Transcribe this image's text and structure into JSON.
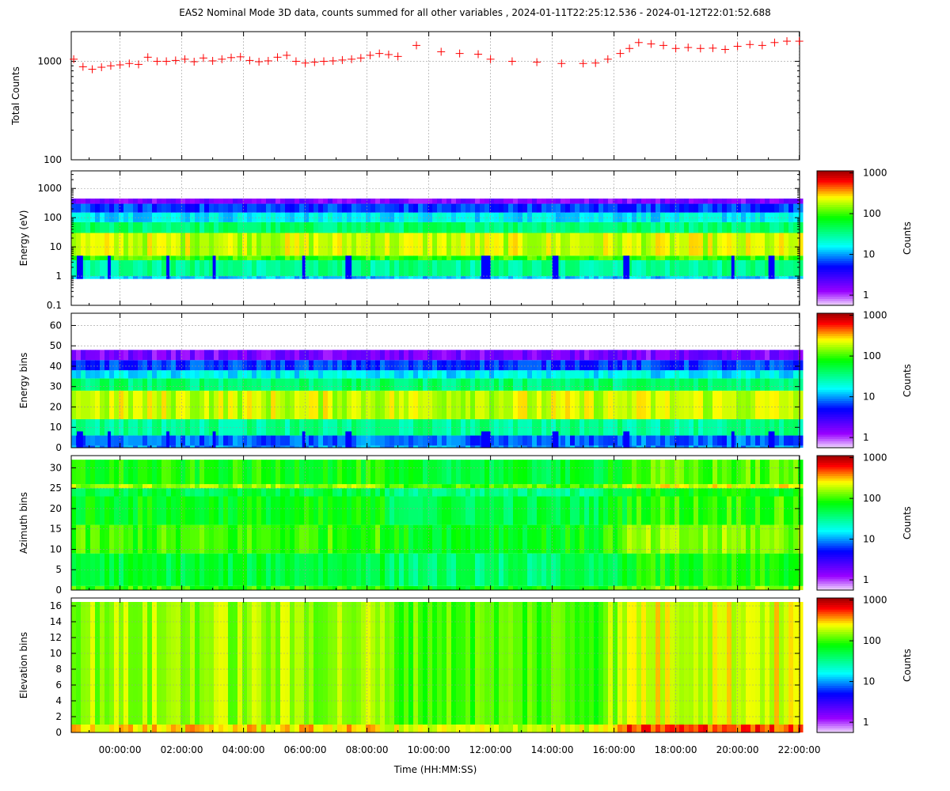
{
  "title": "EAS2  Nominal Mode 3D data, counts summed for all other variables ,  2024-01-11T22:25:12.536 - 2024-01-12T22:01:52.688",
  "xlabel": "Time (HH:MM:SS)",
  "x_ticks": [
    "00:00:00",
    "02:00:00",
    "04:00:00",
    "06:00:00",
    "08:00:00",
    "10:00:00",
    "12:00:00",
    "14:00:00",
    "16:00:00",
    "18:00:00",
    "20:00:00",
    "22:00:00"
  ],
  "colorbar": {
    "label": "Counts",
    "ticks": [
      "1",
      "10",
      "100",
      "1000"
    ],
    "colors": [
      "#ffffff",
      "#9900ff",
      "#0000ff",
      "#00ffff",
      "#00ff00",
      "#ffff00",
      "#ff0000",
      "#880000"
    ]
  },
  "chart_data": [
    {
      "type": "scatter",
      "name": "total-counts",
      "ylabel": "Total Counts",
      "yscale": "log",
      "ylim": [
        100,
        2000
      ],
      "y_ticks": [
        "100",
        "1000"
      ],
      "xlim_hours": [
        -1.58,
        22.03
      ],
      "marker": "+",
      "color": "#ff0000",
      "x_hours": [
        -1.5,
        -1.2,
        -0.9,
        -0.6,
        -0.3,
        0,
        0.3,
        0.6,
        0.9,
        1.2,
        1.5,
        1.8,
        2.1,
        2.4,
        2.7,
        3.0,
        3.3,
        3.6,
        3.9,
        4.2,
        4.5,
        4.8,
        5.1,
        5.4,
        5.7,
        6.0,
        6.3,
        6.6,
        6.9,
        7.2,
        7.5,
        7.8,
        8.1,
        8.4,
        8.7,
        9.0,
        9.6,
        10.4,
        11.0,
        11.6,
        12.0,
        12.7,
        13.5,
        14.3,
        15.0,
        15.4,
        15.8,
        16.2,
        16.5,
        16.8,
        17.2,
        17.6,
        18.0,
        18.4,
        18.8,
        19.2,
        19.6,
        20.0,
        20.4,
        20.8,
        21.2,
        21.6,
        22.0
      ],
      "values": [
        1050,
        880,
        830,
        870,
        900,
        920,
        950,
        930,
        1100,
        1000,
        1000,
        1020,
        1050,
        990,
        1080,
        1010,
        1050,
        1090,
        1110,
        1020,
        990,
        1010,
        1100,
        1150,
        1000,
        960,
        980,
        1000,
        1010,
        1030,
        1050,
        1080,
        1150,
        1200,
        1170,
        1120,
        1450,
        1250,
        1200,
        1180,
        1050,
        1000,
        980,
        950,
        950,
        960,
        1050,
        1200,
        1350,
        1550,
        1500,
        1450,
        1350,
        1380,
        1350,
        1360,
        1320,
        1420,
        1480,
        1450,
        1550,
        1600,
        1600
      ]
    },
    {
      "type": "heatmap",
      "name": "energy",
      "ylabel": "Energy (eV)",
      "yscale": "log",
      "ylim": [
        0.1,
        4000
      ],
      "y_ticks": [
        "0.1",
        "1",
        "10",
        "100",
        "1000"
      ],
      "bands": [
        {
          "y0": 0.8,
          "y1": 1.0,
          "level": 1.1
        },
        {
          "y0": 1.0,
          "y1": 3.5,
          "level": 1.5
        },
        {
          "y0": 3.5,
          "y1": 5.0,
          "level": 2.0
        },
        {
          "y0": 5.0,
          "y1": 30,
          "level": 2.3
        },
        {
          "y0": 30,
          "y1": 70,
          "level": 1.6
        },
        {
          "y0": 70,
          "y1": 150,
          "level": 1.2
        },
        {
          "y0": 150,
          "y1": 300,
          "level": 0.8
        },
        {
          "y0": 300,
          "y1": 450,
          "level": 0.2
        }
      ]
    },
    {
      "type": "heatmap",
      "name": "energy-bins",
      "ylabel": "Energy bins",
      "yscale": "linear",
      "ylim": [
        0,
        66
      ],
      "y_ticks": [
        "0",
        "10",
        "20",
        "30",
        "40",
        "50",
        "60"
      ],
      "bands": [
        {
          "y0": 0,
          "y1": 1,
          "level": 1.0
        },
        {
          "y0": 1,
          "y1": 6,
          "level": 0.9
        },
        {
          "y0": 6,
          "y1": 14,
          "level": 1.5
        },
        {
          "y0": 14,
          "y1": 28,
          "level": 2.3
        },
        {
          "y0": 28,
          "y1": 34,
          "level": 1.6
        },
        {
          "y0": 34,
          "y1": 38,
          "level": 1.2
        },
        {
          "y0": 38,
          "y1": 43,
          "level": 0.8
        },
        {
          "y0": 43,
          "y1": 48,
          "level": 0.2
        }
      ]
    },
    {
      "type": "heatmap",
      "name": "azimuth-bins",
      "ylabel": "Azimuth bins",
      "yscale": "linear",
      "ylim": [
        0,
        33
      ],
      "y_ticks": [
        "0",
        "5",
        "10",
        "15",
        "20",
        "25",
        "30"
      ],
      "bands": [
        {
          "y0": 0,
          "y1": 1,
          "level": 2.0
        },
        {
          "y0": 1,
          "y1": 9,
          "level": 1.75
        },
        {
          "y0": 9,
          "y1": 16,
          "level": 2.0
        },
        {
          "y0": 16,
          "y1": 23,
          "level": 1.85
        },
        {
          "y0": 23,
          "y1": 25,
          "level": 1.7
        },
        {
          "y0": 25,
          "y1": 26,
          "level": 2.2
        },
        {
          "y0": 26,
          "y1": 32,
          "level": 1.9
        }
      ]
    },
    {
      "type": "heatmap",
      "name": "elevation-bins",
      "ylabel": "Elevation bins",
      "yscale": "linear",
      "ylim": [
        0,
        17
      ],
      "y_ticks": [
        "0",
        "2",
        "4",
        "6",
        "8",
        "10",
        "12",
        "14",
        "16"
      ],
      "bands": [
        {
          "y0": 0,
          "y1": 1,
          "level": 2.45
        },
        {
          "y0": 1,
          "y1": 16.5,
          "level": 2.2
        }
      ]
    }
  ]
}
